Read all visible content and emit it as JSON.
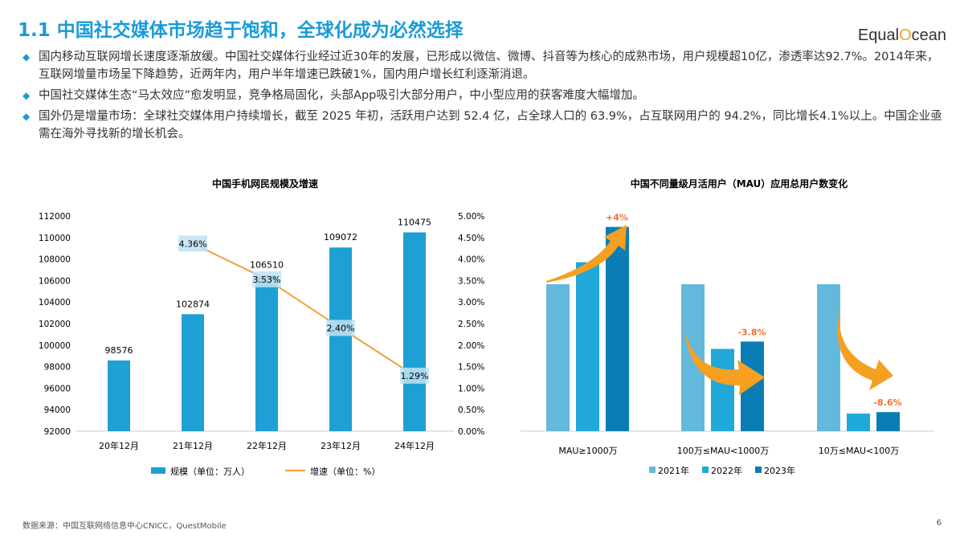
{
  "header": {
    "title": "1.1 中国社交媒体市场趋于饱和，全球化成为必然选择",
    "logo": "EqualOcean"
  },
  "bullets": [
    "国内移动互联网增长速度逐渐放缓。中国社交媒体行业经过近30年的发展，已形成以微信、微博、抖音等为核心的成熟市场，用户规模超10亿，渗透率达92.7%。2014年来，互联网增量市场呈下降趋势，近两年内，用户半年增速已跌破1%，国内用户增长红利逐渐消退。",
    "中国社交媒体生态“马太效应”愈发明显，竞争格局固化，头部App吸引大部分用户，中小型应用的获客难度大幅增加。",
    "国外仍是增量市场：全球社交媒体用户持续增长，截至 2025 年初，活跃用户达到 52.4 亿，占全球人口的 63.9%，占互联网用户的 94.2%，同比增长4.1%以上。中国企业亟需在海外寻找新的增长机会。"
  ],
  "footer": {
    "source": "数据来源：中国互联网络信息中心CNICC，QuestMobile",
    "page": "6"
  },
  "colors": {
    "accent": "#1a9bd7",
    "bar": "#1ea0d4",
    "line": "#f0a040",
    "c2021": "#63b9dc",
    "c2022": "#1fa8d8",
    "c2023": "#0a7db4",
    "arrow": "#f5a020",
    "label": "#f07030"
  },
  "chart_data": [
    {
      "type": "bar+line",
      "title": "中国手机网民规模及增速",
      "categories": [
        "20年12月",
        "21年12月",
        "22年12月",
        "23年12月",
        "24年12月"
      ],
      "series": [
        {
          "name": "规模（单位：万人）",
          "type": "bar",
          "values": [
            98576,
            102874,
            106510,
            109072,
            110475
          ]
        },
        {
          "name": "增速（单位：%）",
          "type": "line",
          "values": [
            null,
            4.36,
            3.53,
            2.4,
            1.29
          ],
          "labels": [
            "",
            "4.36%",
            "3.53%",
            "2.40%",
            "1.29%"
          ]
        }
      ],
      "ylim": [
        92000,
        112000
      ],
      "yticks": [
        "92000",
        "94000",
        "96000",
        "98000",
        "100000",
        "102000",
        "104000",
        "106000",
        "108000",
        "110000",
        "112000"
      ],
      "y2lim": [
        0,
        5
      ],
      "y2ticks": [
        "0.00%",
        "0.50%",
        "1.00%",
        "1.50%",
        "2.00%",
        "2.50%",
        "3.00%",
        "3.50%",
        "4.00%",
        "4.50%",
        "5.00%"
      ],
      "legend": "bottom"
    },
    {
      "type": "bar",
      "title": "中国不同量级月活用户（MAU）应用总用户数变化",
      "categories": [
        "MAU≥1000万",
        "100万≤MAU<1000万",
        "10万≤MAU<100万"
      ],
      "series": [
        {
          "name": "2021年",
          "values": [
            100,
            100,
            100
          ]
        },
        {
          "name": "2022年",
          "values": [
            115,
            56,
            12
          ]
        },
        {
          "name": "2023年",
          "values": [
            139,
            61,
            13
          ]
        }
      ],
      "annotations": [
        "+4%",
        "-3.8%",
        "-8.6%"
      ],
      "legend": "bottom"
    }
  ]
}
